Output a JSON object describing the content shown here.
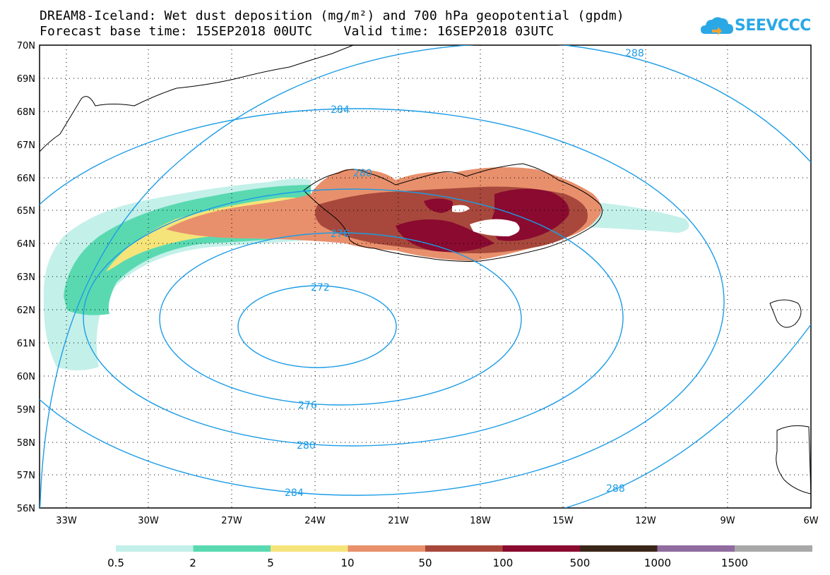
{
  "title": {
    "line1": "DREAM8-Iceland: Wet dust deposition (mg/m²) and 700 hPa geopotential (gpdm)",
    "line2": "Forecast base time: 15SEP2018 00UTC    Valid time: 16SEP2018 03UTC"
  },
  "logo": {
    "text": "SEEVCCC",
    "icon": "cloud-icon",
    "color": "#2aa8e6"
  },
  "map": {
    "lat_labels": [
      "70N",
      "69N",
      "68N",
      "67N",
      "66N",
      "65N",
      "64N",
      "63N",
      "62N",
      "61N",
      "60N",
      "59N",
      "58N",
      "57N",
      "56N"
    ],
    "lon_labels": [
      "33W",
      "30W",
      "27W",
      "24W",
      "21W",
      "18W",
      "15W",
      "12W",
      "9W",
      "6W"
    ],
    "contour_color": "#1c9ce6",
    "contour_labels": [
      "288",
      "284",
      "280",
      "276",
      "272",
      "276",
      "280",
      "284",
      "288"
    ]
  },
  "colorbar": {
    "labels": [
      "0.5",
      "2",
      "5",
      "10",
      "50",
      "100",
      "500",
      "1000",
      "1500"
    ],
    "colors": [
      "#c4f0ea",
      "#5ad9b0",
      "#f5e47a",
      "#e8906c",
      "#a8483c",
      "#8a0a30",
      "#3a2618",
      "#8f6b9e",
      "#a8a8a8"
    ]
  }
}
